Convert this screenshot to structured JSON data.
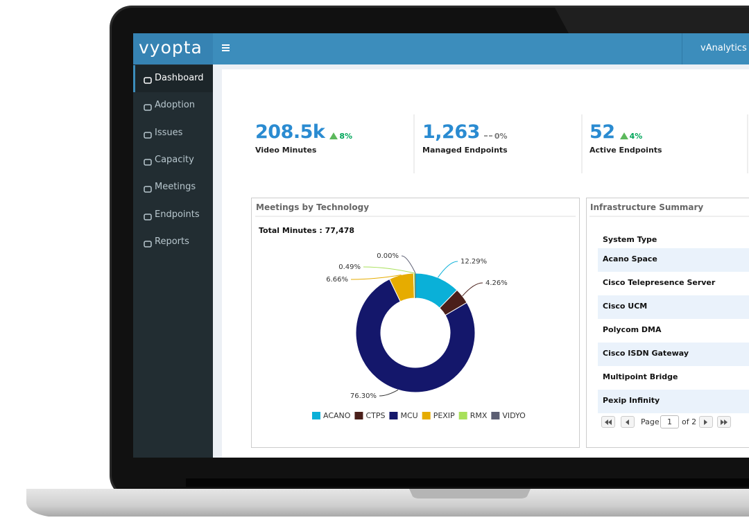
{
  "logo": "vyopta",
  "header": {
    "title": "vAnalytics H"
  },
  "sidebar": {
    "items": [
      "Dashboard",
      "Adoption",
      "Issues",
      "Capacity",
      "Meetings",
      "Endpoints",
      "Reports"
    ]
  },
  "kpis": [
    {
      "value": "208.5k",
      "change": "8%",
      "label": "Video Minutes"
    },
    {
      "value": "1,263",
      "change": "0%",
      "label": "Managed Endpoints"
    },
    {
      "value": "52",
      "change": "4%",
      "label": "Active Endpoints"
    }
  ],
  "chart_data": {
    "type": "pie",
    "title": "Meetings by Technology",
    "subtitle": "Total Minutes : 77,478",
    "categories": [
      "ACANO",
      "CTPS",
      "MCU",
      "PEXIP",
      "RMX",
      "VIDYO"
    ],
    "values": [
      12.29,
      4.26,
      76.3,
      6.66,
      0.49,
      0
    ],
    "value_labels": [
      "12.29%",
      "4.26%",
      "76.30%",
      "6.66%",
      "0.49%",
      "0.00%"
    ],
    "colors": [
      "#0ab0d8",
      "#4a1f1a",
      "#14176b",
      "#e6ac00",
      "#a8e05a",
      "#5c5f73"
    ],
    "donut": true
  },
  "infrastructure": {
    "title": "Infrastructure Summary",
    "header": "System Type",
    "rows": [
      "Acano Space",
      "Cisco Telepresence Server",
      "Cisco UCM",
      "Polycom DMA",
      "Cisco ISDN Gateway",
      "Multipoint Bridge",
      "Pexip Infinity"
    ],
    "pager": {
      "page_label": "Page",
      "page": "1",
      "of": "of 2"
    }
  }
}
